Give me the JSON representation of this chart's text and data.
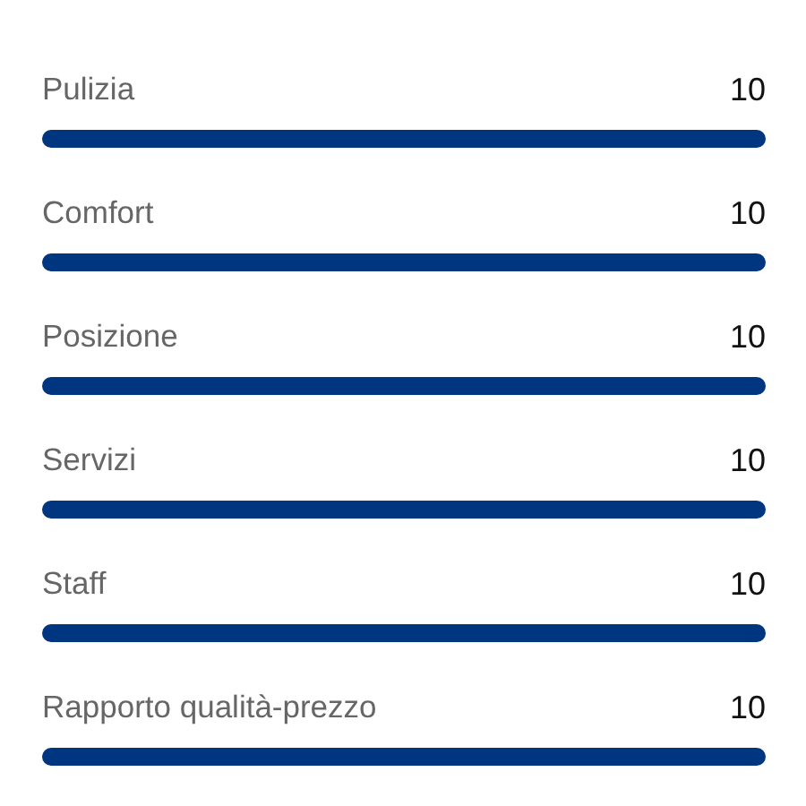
{
  "chart_data": {
    "type": "bar",
    "orientation": "horizontal",
    "categories": [
      "Pulizia",
      "Comfort",
      "Posizione",
      "Servizi",
      "Staff",
      "Rapporto qualità-prezzo"
    ],
    "values": [
      10,
      10,
      10,
      10,
      10,
      10
    ],
    "color": "#003580",
    "tick_labels": false,
    "data_labels": true
  }
}
